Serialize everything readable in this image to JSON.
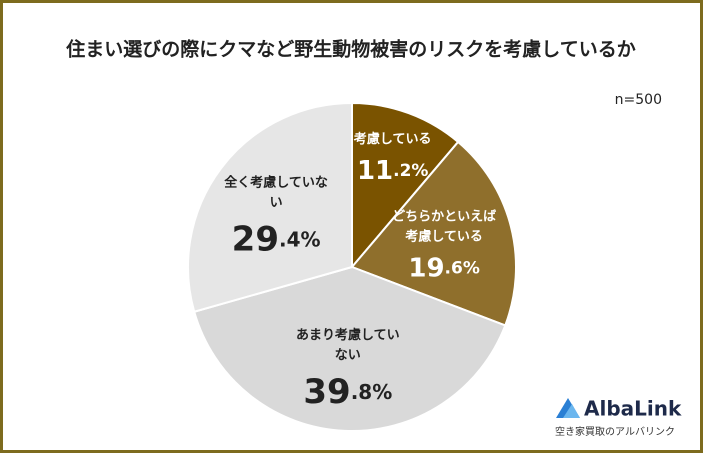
{
  "chart_data": {
    "type": "pie",
    "title": "住まい選びの際にクマなど野生動物被害のリスクを考慮しているか",
    "subtitle": "n=500",
    "categories": [
      "考慮している",
      "どちらかといえば考慮している",
      "あまり考慮していない",
      "全く考慮していない"
    ],
    "values": [
      11.2,
      19.6,
      39.8,
      29.4
    ],
    "value_labels": [
      "11.2%",
      "19.6%",
      "39.8%",
      "29.4%"
    ],
    "colors": [
      "#7a5300",
      "#8f6f2c",
      "#d9d9d9",
      "#e6e6e6"
    ]
  },
  "logo": {
    "name": "AlbaLink",
    "tagline": "空き家買取のアルバリンク"
  }
}
